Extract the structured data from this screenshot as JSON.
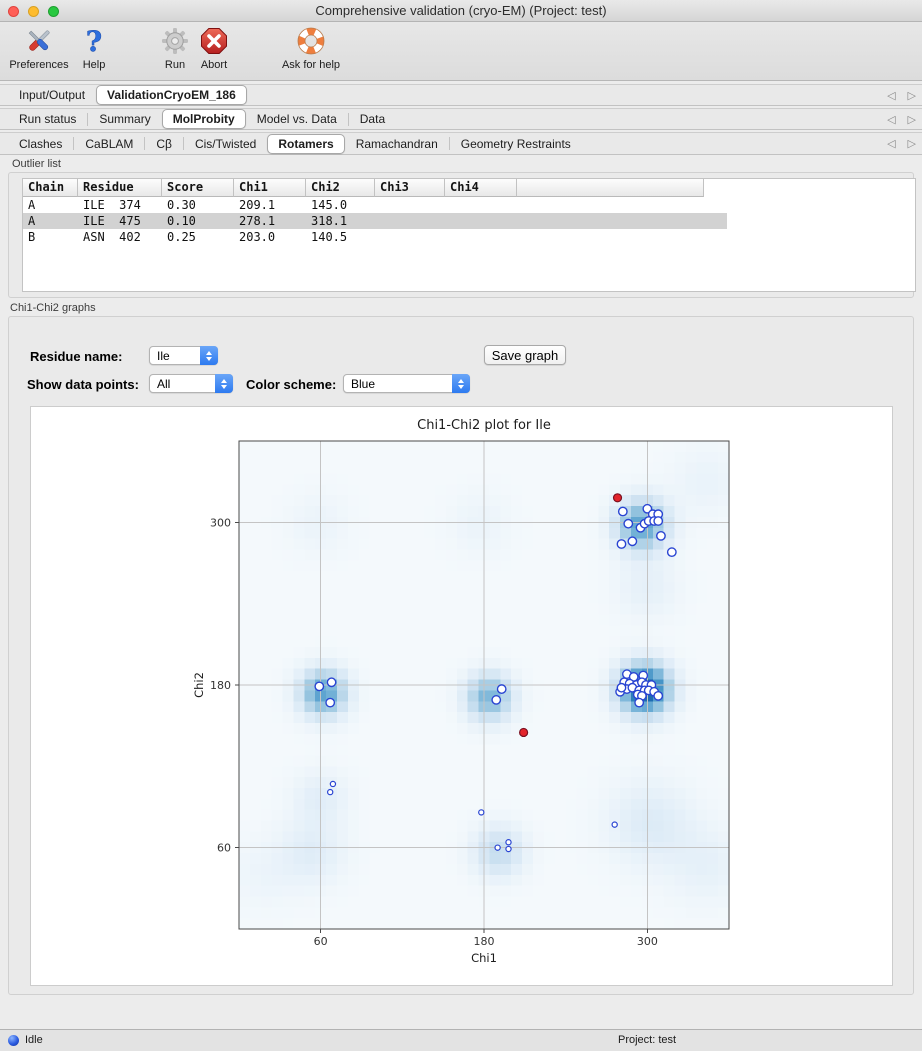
{
  "window": {
    "title": "Comprehensive validation (cryo-EM) (Project: test)"
  },
  "toolbar": {
    "items": [
      {
        "label": "Preferences",
        "icon": "preferences-tools-icon"
      },
      {
        "label": "Help",
        "icon": "help-question-icon"
      },
      {
        "label": "Run",
        "icon": "run-gear-icon",
        "enabled": false
      },
      {
        "label": "Abort",
        "icon": "abort-stop-icon",
        "enabled": true
      },
      {
        "label": "Ask for help",
        "icon": "ask-for-help-lifebuoy-icon"
      }
    ]
  },
  "tab_rows": [
    {
      "tabs": [
        {
          "label": "Input/Output",
          "selected": false
        },
        {
          "label": "ValidationCryoEM_186",
          "selected": true
        }
      ]
    },
    {
      "tabs": [
        {
          "label": "Run status",
          "selected": false
        },
        {
          "label": "Summary",
          "selected": false
        },
        {
          "label": "MolProbity",
          "selected": true
        },
        {
          "label": "Model vs. Data",
          "selected": false
        },
        {
          "label": "Data",
          "selected": false
        }
      ]
    },
    {
      "tabs": [
        {
          "label": "Clashes",
          "selected": false
        },
        {
          "label": "CaBLAM",
          "selected": false
        },
        {
          "label": "Cβ",
          "selected": false
        },
        {
          "label": "Cis/Twisted",
          "selected": false
        },
        {
          "label": "Rotamers",
          "selected": true
        },
        {
          "label": "Ramachandran",
          "selected": false
        },
        {
          "label": "Geometry Restraints",
          "selected": false
        }
      ]
    }
  ],
  "outlier_list": {
    "label": "Outlier list",
    "columns": [
      "Chain",
      "Residue",
      "Score",
      "Chi1",
      "Chi2",
      "Chi3",
      "Chi4"
    ],
    "rows": [
      [
        "A",
        "ILE  374",
        "0.30",
        "209.1",
        "145.0",
        "",
        ""
      ],
      [
        "A",
        "ILE  475",
        "0.10",
        "278.1",
        "318.1",
        "",
        ""
      ],
      [
        "B",
        "ASN  402",
        "0.25",
        "203.0",
        "140.5",
        "",
        ""
      ]
    ],
    "selected_row_index": 1
  },
  "graphs_section": {
    "label": "Chi1-Chi2 graphs",
    "residue_name_label": "Residue name:",
    "residue_name_value": "Ile",
    "save_button": "Save graph",
    "show_points_label": "Show data points:",
    "show_points_value": "All",
    "color_scheme_label": "Color scheme:",
    "color_scheme_value": "Blue"
  },
  "chart_data": {
    "type": "scatter",
    "title": "Chi1-Chi2 plot for Ile",
    "xlabel": "Chi1",
    "ylabel": "Chi2",
    "xlim": [
      0,
      360
    ],
    "ylim": [
      0,
      360
    ],
    "xticks": [
      60,
      180,
      300
    ],
    "yticks": [
      60,
      180,
      300
    ],
    "grid": true,
    "background": "#f4f9fc",
    "point_edge_color": "#2944d2",
    "outlier_color": "#e3242b",
    "series": [
      {
        "name": "residues-large",
        "marker": "open-circle",
        "size": "large",
        "points": [
          [
            282,
            308
          ],
          [
            300,
            310
          ],
          [
            304,
            306
          ],
          [
            308,
            306
          ],
          [
            286,
            299
          ],
          [
            295,
            296
          ],
          [
            298,
            299
          ],
          [
            301,
            301
          ],
          [
            305,
            301
          ],
          [
            308,
            301
          ],
          [
            289,
            286
          ],
          [
            281,
            284
          ],
          [
            310,
            290
          ],
          [
            318,
            278
          ],
          [
            285,
            188
          ],
          [
            290,
            186
          ],
          [
            297,
            187
          ],
          [
            283,
            182
          ],
          [
            287,
            181
          ],
          [
            292,
            180
          ],
          [
            296,
            182
          ],
          [
            299,
            180
          ],
          [
            303,
            180
          ],
          [
            280,
            175
          ],
          [
            285,
            177
          ],
          [
            289,
            178
          ],
          [
            294,
            176
          ],
          [
            298,
            176
          ],
          [
            301,
            176
          ],
          [
            305,
            175
          ],
          [
            308,
            172
          ],
          [
            293,
            173
          ],
          [
            296,
            172
          ],
          [
            294,
            167
          ],
          [
            281,
            178
          ],
          [
            59,
            179
          ],
          [
            68,
            182
          ],
          [
            67,
            167
          ],
          [
            193,
            177
          ],
          [
            189,
            169
          ]
        ]
      },
      {
        "name": "residues-small",
        "marker": "open-circle",
        "size": "small",
        "points": [
          [
            69,
            107
          ],
          [
            67,
            101
          ],
          [
            178,
            86
          ],
          [
            190,
            60
          ],
          [
            198,
            64
          ],
          [
            198,
            59
          ],
          [
            276,
            77
          ]
        ]
      },
      {
        "name": "outliers",
        "marker": "filled-circle",
        "points": [
          [
            209.1,
            145.0
          ],
          [
            278.1,
            318.1
          ]
        ]
      }
    ],
    "density": {
      "colormap": "Blues",
      "blobs": [
        {
          "x": 298,
          "y": 177,
          "amp": 0.95,
          "sigma": 13
        },
        {
          "x": 296,
          "y": 298,
          "amp": 0.62,
          "sigma": 13
        },
        {
          "x": 62,
          "y": 174,
          "amp": 0.62,
          "sigma": 12
        },
        {
          "x": 184,
          "y": 171,
          "amp": 0.52,
          "sigma": 12
        },
        {
          "x": 191,
          "y": 57,
          "amp": 0.28,
          "sigma": 13
        },
        {
          "x": 302,
          "y": 78,
          "amp": 0.15,
          "sigma": 22
        },
        {
          "x": 60,
          "y": 97,
          "amp": 0.12,
          "sigma": 14
        },
        {
          "x": 54,
          "y": 57,
          "amp": 0.13,
          "sigma": 17
        },
        {
          "x": 177,
          "y": 299,
          "amp": 0.06,
          "sigma": 16
        },
        {
          "x": 58,
          "y": 299,
          "amp": 0.06,
          "sigma": 16
        },
        {
          "x": 344,
          "y": 47,
          "amp": 0.09,
          "sigma": 20
        },
        {
          "x": 18,
          "y": 40,
          "amp": 0.05,
          "sigma": 18
        },
        {
          "x": 343,
          "y": 330,
          "amp": 0.07,
          "sigma": 18
        },
        {
          "x": 300,
          "y": 252,
          "amp": 0.1,
          "sigma": 16
        }
      ]
    }
  },
  "status_bar": {
    "status": "Idle",
    "project": "Project: test"
  }
}
